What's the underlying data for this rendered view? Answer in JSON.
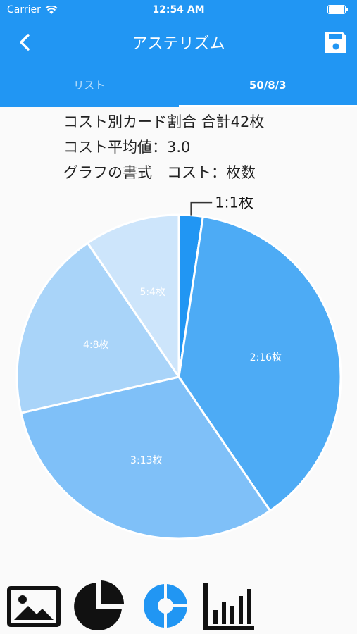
{
  "status": {
    "carrier": "Carrier",
    "time": "12:54 AM"
  },
  "app_bar": {
    "title": "アステリズム"
  },
  "tabs": [
    {
      "label": "リスト",
      "active": false
    },
    {
      "label": "50/8/3",
      "active": true
    }
  ],
  "info": {
    "line1": "コスト別カード割合 合計42枚",
    "line2": "コスト平均値：3.0",
    "line3": "グラフの書式　コスト：枚数"
  },
  "chart_data": {
    "type": "pie",
    "categories": [
      "1",
      "2",
      "3",
      "4",
      "5"
    ],
    "values": [
      1,
      16,
      13,
      8,
      4
    ],
    "labels": [
      "1:1枚",
      "2:16枚",
      "3:13枚",
      "4:8枚",
      "5:4枚"
    ],
    "colors": [
      "#2196f3",
      "#4dabf5",
      "#7fc0f8",
      "#a9d4f9",
      "#cde5fb"
    ]
  },
  "toolbar": {
    "icons": [
      "image-icon",
      "pie-chart-icon",
      "donut-chart-icon",
      "bar-chart-icon"
    ]
  }
}
